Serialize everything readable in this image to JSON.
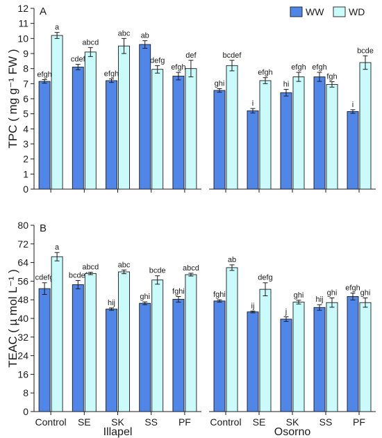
{
  "colors": {
    "WW": "#4f86e8",
    "WD": "#c9fbfb",
    "stroke": "#1a1a1a"
  },
  "legend": {
    "placement": "top-right",
    "items": [
      {
        "key": "WW",
        "label": "WW"
      },
      {
        "key": "WD",
        "label": "WD"
      }
    ]
  },
  "chart_data": [
    {
      "type": "bar",
      "panel": "A",
      "ylabel": "TPC ( mg g⁻¹ FW )",
      "ylim": [
        0,
        12
      ],
      "yticks": [
        0,
        1,
        2,
        3,
        4,
        5,
        6,
        7,
        8,
        9,
        10,
        11,
        12
      ],
      "grid": false,
      "groups": [
        {
          "name": "Illapel",
          "categories": [
            "Control",
            "SE",
            "SK",
            "SS",
            "PF"
          ],
          "series": [
            {
              "name": "WW",
              "values": [
                7.15,
                8.1,
                7.2,
                9.6,
                7.5
              ],
              "errors": [
                0.12,
                0.18,
                0.12,
                0.25,
                0.25
              ],
              "letters": [
                "efgh",
                "cdef",
                "efgh",
                "ab",
                "efgh"
              ]
            },
            {
              "name": "WD",
              "values": [
                10.2,
                9.1,
                9.5,
                7.95,
                8.0
              ],
              "errors": [
                0.2,
                0.3,
                0.5,
                0.25,
                0.55
              ],
              "letters": [
                "a",
                "abcd",
                "abc",
                "defg",
                "def"
              ]
            }
          ]
        },
        {
          "name": "Osorno",
          "categories": [
            "Control",
            "SE",
            "SK",
            "SS",
            "PF"
          ],
          "series": [
            {
              "name": "WW",
              "values": [
                6.55,
                5.2,
                6.4,
                7.45,
                5.15
              ],
              "errors": [
                0.12,
                0.15,
                0.22,
                0.3,
                0.12
              ],
              "letters": [
                "ghi",
                "i",
                "hi",
                "efgh",
                "i"
              ]
            },
            {
              "name": "WD",
              "values": [
                8.2,
                7.2,
                7.45,
                6.95,
                8.4
              ],
              "errors": [
                0.35,
                0.2,
                0.3,
                0.18,
                0.45
              ],
              "letters": [
                "bcdef",
                "efgh",
                "efgh",
                "fgh",
                "bcde"
              ]
            }
          ]
        }
      ]
    },
    {
      "type": "bar",
      "panel": "B",
      "ylabel": "TEAC ( µ mol  L⁻¹ )",
      "ylim": [
        0,
        80
      ],
      "yticks": [
        0,
        8,
        16,
        24,
        32,
        40,
        48,
        56,
        64,
        72,
        80
      ],
      "grid": false,
      "groups": [
        {
          "name": "Illapel",
          "categories": [
            "Control",
            "SE",
            "SK",
            "SS",
            "PF"
          ],
          "series": [
            {
              "name": "WW",
              "values": [
                52.8,
                54.5,
                44.0,
                46.5,
                48.2
              ],
              "errors": [
                2.5,
                1.8,
                0.5,
                0.6,
                1.2
              ],
              "letters": [
                "cdefg",
                "bcdef",
                "hij",
                "ghi",
                "fghi"
              ]
            },
            {
              "name": "WD",
              "values": [
                66.5,
                59.3,
                60.0,
                56.5,
                58.8
              ],
              "errors": [
                1.8,
                0.5,
                0.8,
                1.8,
                0.6
              ],
              "letters": [
                "a",
                "abcd",
                "abc",
                "bcde",
                "abcd"
              ]
            }
          ]
        },
        {
          "name": "Osorno",
          "categories": [
            "Control",
            "SE",
            "SK",
            "SS",
            "PF"
          ],
          "series": [
            {
              "name": "WW",
              "values": [
                47.5,
                42.8,
                39.7,
                44.7,
                49.4
              ],
              "errors": [
                0.5,
                0.4,
                1.0,
                1.2,
                1.5
              ],
              "letters": [
                "fghi",
                "ij",
                "j",
                "hij",
                "efgh"
              ]
            },
            {
              "name": "WD",
              "values": [
                61.8,
                52.5,
                47.0,
                46.8,
                46.8
              ],
              "errors": [
                1.2,
                2.8,
                0.8,
                2.0,
                2.0
              ],
              "letters": [
                "ab",
                "defg",
                "ghi",
                "ghi",
                "ghi"
              ]
            }
          ]
        }
      ]
    }
  ]
}
